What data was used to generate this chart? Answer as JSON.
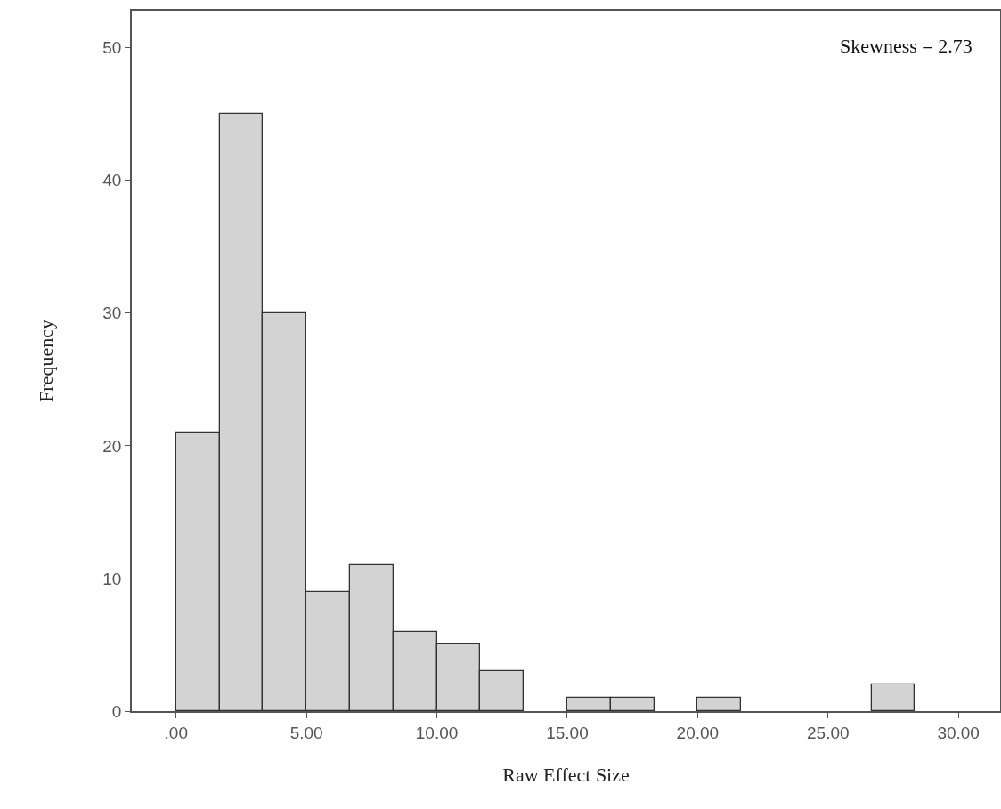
{
  "chart_data": {
    "type": "histogram",
    "xlabel": "Raw Effect Size",
    "ylabel": "Frequency",
    "annotations": [
      "Skewness = 2.73"
    ],
    "bins": [
      0,
      1.667,
      3.333,
      5,
      6.667,
      8.333,
      10,
      11.667,
      13.333,
      15,
      16.667,
      18.333,
      20,
      21.667,
      23.333,
      25,
      26.667,
      28.333
    ],
    "values": [
      21,
      45,
      30,
      9,
      11,
      6,
      5,
      3,
      0,
      1,
      1,
      0,
      1,
      0,
      0,
      0,
      2
    ],
    "color": "#d3d3d3",
    "xlim": [
      -1.7,
      31.6
    ],
    "ylim": [
      0,
      52.8
    ],
    "xticks": [
      {
        "value": 0,
        "label": ".00"
      },
      {
        "value": 5,
        "label": "5.00"
      },
      {
        "value": 10,
        "label": "10.00"
      },
      {
        "value": 15,
        "label": "15.00"
      },
      {
        "value": 20,
        "label": "20.00"
      },
      {
        "value": 25,
        "label": "25.00"
      },
      {
        "value": 30,
        "label": "30.00"
      }
    ],
    "yticks": [
      0,
      10,
      20,
      30,
      40,
      50
    ],
    "grid": false,
    "legend": false
  }
}
